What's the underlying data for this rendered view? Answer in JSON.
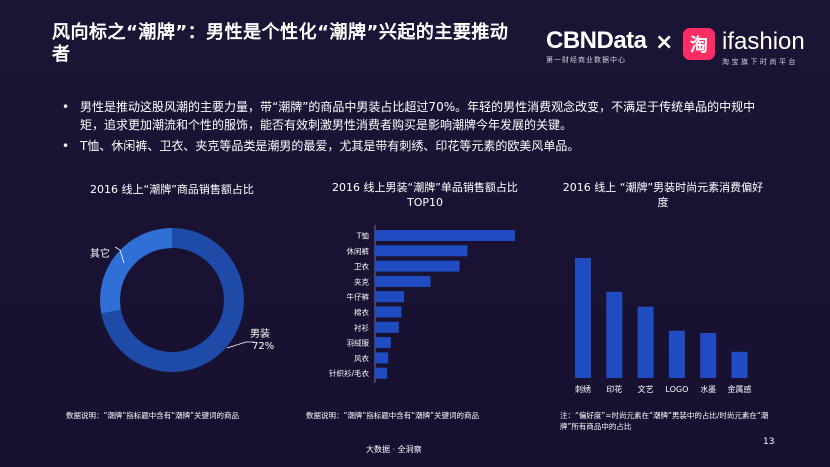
{
  "header": {
    "title": "风向标之“潮牌”：男性是个性化“潮牌”兴起的主要推动者",
    "cbn_logo": "CBNData",
    "cbn_sub": "第一财经商业数据中心",
    "times": "×",
    "tmall_icon_text": "淘",
    "ifashion_logo": "ifashion",
    "ifashion_sub": "淘宝旗下时尚平台"
  },
  "bullets": [
    "男性是推动这股风潮的主要力量，带“潮牌”的商品中男装占比超过70%。年轻的男性消费观念改变，不满足于传统单品的中规中矩，追求更加潮流和个性的服饰，能否有效刺激男性消费者购买是影响潮牌今年发展的关键。",
    "T恤、休闲裤、卫衣、夹克等品类是潮男的最爱，尤其是带有刺绣、印花等元素的欧美风单品。"
  ],
  "charts": {
    "donut_title": "2016 线上“潮牌”商品销售额占比",
    "bar_title": "2016 线上男装“潮牌”单品销售额占比TOP10",
    "col_title": "2016 线上 “潮牌”男装时尚元素消费偏好度",
    "note_left": "数据说明：“潮牌”指标题中含有“潮牌”关键词的商品",
    "note_mid": "数据说明：“潮牌”指标题中含有“潮牌”关键词的商品",
    "note_right": "注：“偏好度”=时尚元素在“潮牌”男装中的占比/时尚元素在“潮牌”所有商品中的占比"
  },
  "chart_data": [
    {
      "type": "pie",
      "title": "2016 线上“潮牌”商品销售额占比",
      "categories": [
        "男装",
        "其它"
      ],
      "values": [
        72,
        28
      ],
      "labels": [
        "男装\n72%",
        "其它"
      ],
      "colors": [
        "#1e4aa8",
        "#2f6fd6"
      ]
    },
    {
      "type": "bar",
      "orientation": "horizontal",
      "title": "2016 线上男装“潮牌”单品销售额占比TOP10",
      "categories": [
        "T恤",
        "休闲裤",
        "卫衣",
        "夹克",
        "牛仔裤",
        "棉衣",
        "衬衫",
        "羽绒服",
        "风衣",
        "针织衫/毛衣"
      ],
      "values": [
        26.5,
        17.5,
        16.0,
        10.5,
        5.5,
        5.0,
        4.5,
        3.0,
        2.5,
        2.3
      ],
      "color": "#1f4cc0"
    },
    {
      "type": "bar",
      "title": "2016 线上 “潮牌”男装时尚元素消费偏好度",
      "categories": [
        "刺绣",
        "印花",
        "文艺",
        "LOGO",
        "水墨",
        "金属感"
      ],
      "values": [
        1.6,
        1.15,
        0.95,
        0.63,
        0.6,
        0.35
      ],
      "color": "#1f4cc0"
    }
  ],
  "footer": {
    "brand": "大数据 · 全洞察",
    "page": "13"
  }
}
